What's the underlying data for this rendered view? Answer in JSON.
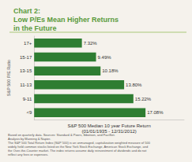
{
  "chart_data": {
    "type": "bar",
    "orientation": "horizontal",
    "title": "Chart 2:\nLow P/Es Mean Higher Returns\nin the Future",
    "xlabel": "S&P 500 Median 10 year Future Return\n(01/01/1935 - 12/31/2012)",
    "ylabel": "S&P 500 P/E Ratio",
    "categories": [
      "<9",
      "9-11",
      "11-13",
      "13-15",
      "15-17",
      "17+"
    ],
    "values": [
      17.08,
      15.22,
      13.8,
      10.18,
      9.49,
      7.32
    ],
    "value_labels": [
      "17.08%",
      "15.22%",
      "13.80%",
      "10.18%",
      "9.49%",
      "7.32%"
    ],
    "data_labels": true,
    "color": "#2e7d32",
    "xlim": [
      0,
      23
    ],
    "tick_labels": "y",
    "grid": false,
    "annotations": [
      "Based on quarterly data. Sources: Standard & Poors, Ibbotson, and FactSet.",
      "Analysis by Manning & Napier.",
      "The S&P 500 Total Return Index (S&P 500) is an unmanaged, capitalization weighted measure of 500",
      "widely held common stocks listed on the New York Stock Exchange, American Stock Exchange, and",
      "the Over-the-Counter market. The index returns assume daily reinvestment of dividends and do not",
      "reflect any fees or expenses."
    ]
  }
}
